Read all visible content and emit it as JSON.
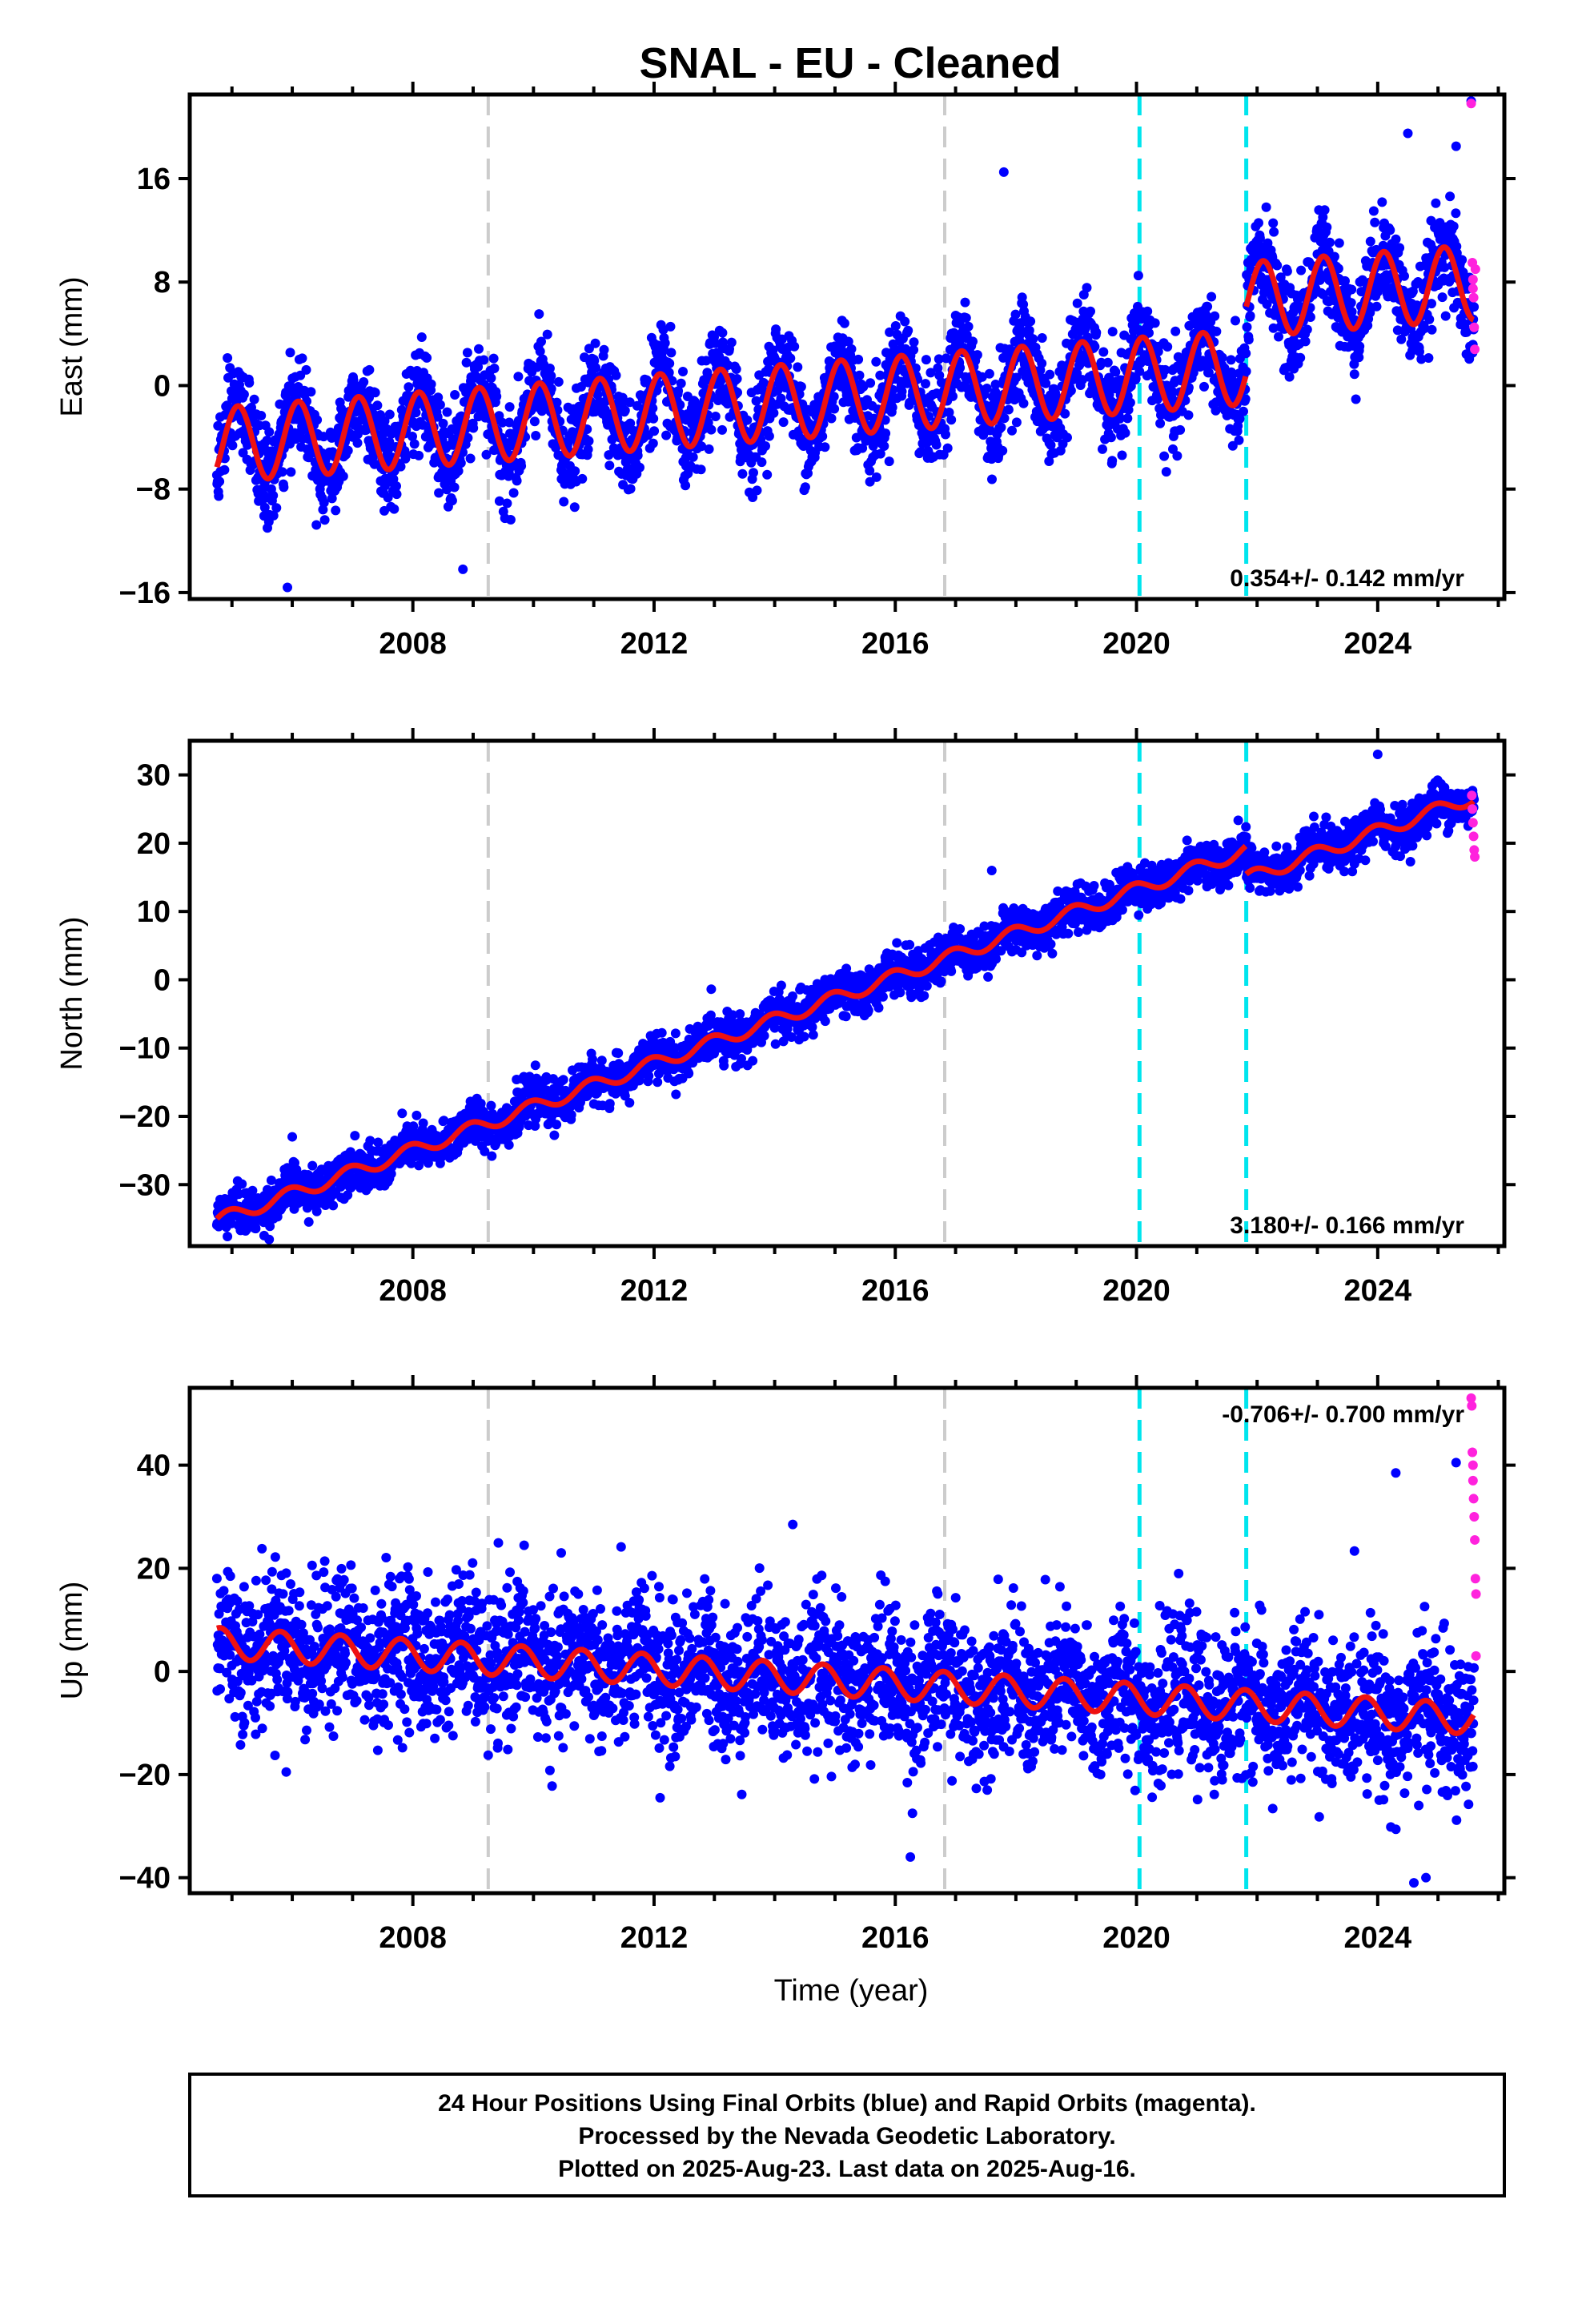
{
  "title": "SNAL  - EU - Cleaned",
  "footer": {
    "lines": [
      "24 Hour Positions Using Final Orbits (blue) and Rapid Orbits (magenta).",
      "Processed by the Nevada Geodetic Laboratory.",
      "Plotted on 2025-Aug-23. Last data on 2025-Aug-16."
    ]
  },
  "colors": {
    "final": "#0000ff",
    "rapid": "#ff22dd",
    "model": "#ee1111",
    "equipment": "#cccccc",
    "earthquake": "#00e5ee"
  },
  "chart_data": [
    {
      "type": "scatter",
      "name": "east",
      "ylabel": "East (mm)",
      "xlim": [
        2004.3,
        2026.1
      ],
      "ylim": [
        -16.5,
        22.5
      ],
      "yticks": [
        -16,
        -8,
        0,
        8,
        16
      ],
      "xticks": [
        2008,
        2012,
        2016,
        2020,
        2024
      ],
      "rate_text": "0.354+/- 0.142 mm/yr",
      "rate_position": "bottom-right",
      "model": {
        "start": 2004.75,
        "end": 2025.6,
        "offset": -4.6,
        "trend": 0.354,
        "amplitude": 2.9,
        "phase": 0.15,
        "steps": [
          {
            "year": 2021.82,
            "jump": 5.2
          }
        ]
      },
      "scatter_sd": 1.8,
      "outliers": [
        [
          2005.92,
          -15.6
        ],
        [
          2008.83,
          -14.2
        ],
        [
          2017.8,
          16.5
        ],
        [
          2024.5,
          19.5
        ],
        [
          2025.3,
          18.5
        ],
        [
          2025.55,
          22
        ]
      ],
      "rapid_points": [
        [
          2025.55,
          21.8
        ],
        [
          2025.57,
          9.5
        ],
        [
          2025.58,
          8.2
        ],
        [
          2025.58,
          7.5
        ],
        [
          2025.59,
          6.8
        ],
        [
          2025.6,
          4.5
        ],
        [
          2025.61,
          2.8
        ],
        [
          2025.62,
          9
        ]
      ],
      "equipment_changes": [
        2009.25,
        2016.82
      ],
      "earthquakes": [
        2020.05,
        2021.82
      ]
    },
    {
      "type": "scatter",
      "name": "north",
      "ylabel": "North (mm)",
      "xlim": [
        2004.3,
        2026.1
      ],
      "ylim": [
        -39,
        35
      ],
      "yticks": [
        -30,
        -20,
        -10,
        0,
        10,
        20,
        30
      ],
      "xticks": [
        2008,
        2012,
        2016,
        2020,
        2024
      ],
      "rate_text": "3.180+/- 0.166 mm/yr",
      "rate_position": "bottom-right",
      "model": {
        "start": 2004.75,
        "end": 2025.6,
        "offset": -35.3,
        "trend": 3.18,
        "amplitude": 1.0,
        "phase": 0.3,
        "steps": [
          {
            "year": 2021.82,
            "jump": -4.2
          }
        ]
      },
      "scatter_sd": 1.6,
      "outliers": [
        [
          2006.0,
          -23
        ],
        [
          2017.6,
          16
        ],
        [
          2024.0,
          33
        ]
      ],
      "rapid_points": [
        [
          2025.56,
          27
        ],
        [
          2025.57,
          25
        ],
        [
          2025.58,
          23
        ],
        [
          2025.59,
          21
        ],
        [
          2025.6,
          19
        ],
        [
          2025.61,
          18
        ]
      ],
      "equipment_changes": [
        2009.25,
        2016.82
      ],
      "earthquakes": [
        2020.05,
        2021.82
      ]
    },
    {
      "type": "scatter",
      "name": "up",
      "ylabel": "Up (mm)",
      "xlabel": "Time (year)",
      "xlim": [
        2004.3,
        2026.1
      ],
      "ylim": [
        -43,
        55
      ],
      "yticks": [
        -40,
        -20,
        0,
        20,
        40
      ],
      "xticks": [
        2008,
        2012,
        2016,
        2020,
        2024
      ],
      "rate_text": "-0.706+/- 0.700 mm/yr",
      "rate_position": "top-right",
      "model": {
        "start": 2004.75,
        "end": 2025.6,
        "offset": 5.5,
        "trend": -0.706,
        "amplitude": 3.0,
        "phase": 0.45,
        "steps": []
      },
      "scatter_sd": 7.0,
      "outliers": [
        [
          2005.9,
          -19.5
        ],
        [
          2012.1,
          -24.5
        ],
        [
          2014.3,
          28.5
        ],
        [
          2016.25,
          -36
        ],
        [
          2024.3,
          38.5
        ],
        [
          2024.6,
          -41
        ],
        [
          2024.8,
          -40
        ],
        [
          2025.3,
          40.5
        ]
      ],
      "rapid_points": [
        [
          2025.55,
          53
        ],
        [
          2025.56,
          51.5
        ],
        [
          2025.57,
          42.5
        ],
        [
          2025.58,
          40
        ],
        [
          2025.58,
          37
        ],
        [
          2025.59,
          33.5
        ],
        [
          2025.6,
          30
        ],
        [
          2025.61,
          25.5
        ],
        [
          2025.62,
          18
        ],
        [
          2025.63,
          15
        ],
        [
          2025.63,
          3
        ]
      ],
      "equipment_changes": [
        2009.25,
        2016.82
      ],
      "earthquakes": [
        2020.05,
        2021.82
      ]
    }
  ]
}
